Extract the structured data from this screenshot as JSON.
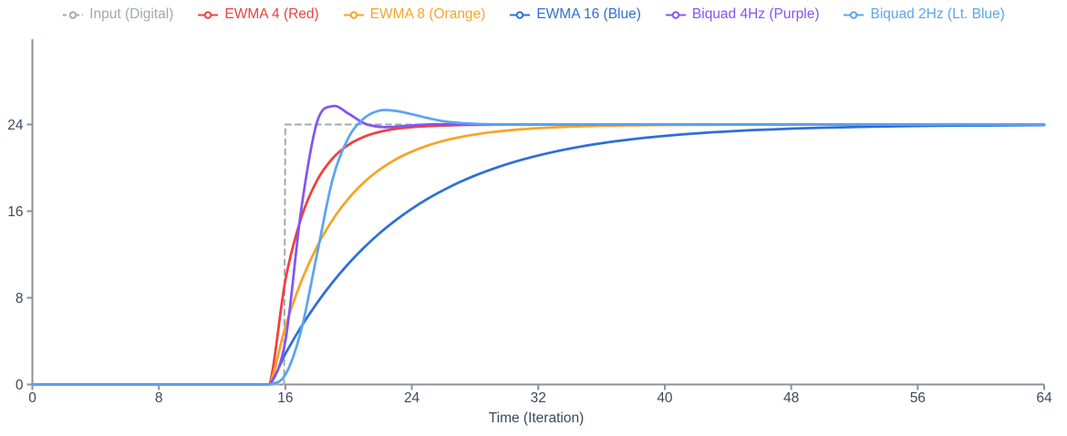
{
  "chart_data": {
    "type": "line",
    "title": "",
    "xlabel": "Time (Iteration)",
    "ylabel": "",
    "xlim": [
      0,
      64
    ],
    "ylim": [
      0,
      31.8
    ],
    "x_ticks": [
      0,
      8,
      16,
      24,
      32,
      40,
      48,
      56,
      64
    ],
    "y_ticks": [
      0,
      8,
      16,
      24
    ],
    "grid": false,
    "legend_position": "top-center",
    "axis_color": "#8b919c",
    "tick_label_color": "#3b4a5e",
    "background_color": "#ffffff",
    "series": [
      {
        "label": "Input (Digital)",
        "color": "#a3a7b3",
        "dash": true,
        "smooth": false,
        "points": [
          [
            0,
            0
          ],
          [
            15.92,
            0
          ],
          [
            16,
            24
          ],
          [
            64,
            24
          ]
        ]
      },
      {
        "label": "EWMA 4 (Red)",
        "color": "#ee4140",
        "dash": false,
        "smooth": true,
        "points": [
          [
            0,
            0
          ],
          [
            8,
            0
          ],
          [
            14,
            0
          ],
          [
            15,
            0
          ],
          [
            16,
            9.6
          ],
          [
            17,
            15.36
          ],
          [
            18,
            18.82
          ],
          [
            19,
            20.89
          ],
          [
            20,
            22.13
          ],
          [
            21,
            22.88
          ],
          [
            22,
            23.33
          ],
          [
            23,
            23.6
          ],
          [
            24,
            23.76
          ],
          [
            25,
            23.85
          ],
          [
            26,
            23.91
          ],
          [
            27,
            23.95
          ],
          [
            28,
            23.97
          ],
          [
            30,
            23.99
          ],
          [
            33,
            24
          ],
          [
            48,
            24
          ],
          [
            64,
            24
          ]
        ]
      },
      {
        "label": "EWMA 8 (Orange)",
        "color": "#f7a428",
        "dash": false,
        "smooth": true,
        "points": [
          [
            0,
            0
          ],
          [
            8,
            0
          ],
          [
            14,
            0
          ],
          [
            15,
            0
          ],
          [
            16,
            5.33
          ],
          [
            17,
            9.48
          ],
          [
            18,
            12.71
          ],
          [
            19,
            15.22
          ],
          [
            20,
            17.17
          ],
          [
            21,
            18.69
          ],
          [
            22,
            19.87
          ],
          [
            23,
            20.79
          ],
          [
            24,
            21.5
          ],
          [
            25,
            22.06
          ],
          [
            26,
            22.49
          ],
          [
            27,
            22.82
          ],
          [
            28,
            23.08
          ],
          [
            29,
            23.29
          ],
          [
            30,
            23.44
          ],
          [
            31,
            23.57
          ],
          [
            32,
            23.66
          ],
          [
            33,
            23.74
          ],
          [
            34,
            23.8
          ],
          [
            35,
            23.84
          ],
          [
            36,
            23.88
          ],
          [
            38,
            23.93
          ],
          [
            40,
            23.96
          ],
          [
            44,
            23.98
          ],
          [
            48,
            24
          ],
          [
            56,
            24
          ],
          [
            64,
            24
          ]
        ]
      },
      {
        "label": "EWMA 16 (Blue)",
        "color": "#2e6fd8",
        "dash": false,
        "smooth": true,
        "points": [
          [
            0,
            0
          ],
          [
            8,
            0
          ],
          [
            14,
            0
          ],
          [
            15,
            0
          ],
          [
            16,
            2.82
          ],
          [
            17,
            5.32
          ],
          [
            18,
            7.51
          ],
          [
            19,
            9.45
          ],
          [
            20,
            11.16
          ],
          [
            21,
            12.67
          ],
          [
            22,
            14.01
          ],
          [
            23,
            15.18
          ],
          [
            24,
            16.22
          ],
          [
            25,
            17.14
          ],
          [
            26,
            17.94
          ],
          [
            27,
            18.66
          ],
          [
            28,
            19.29
          ],
          [
            29,
            19.84
          ],
          [
            30,
            20.33
          ],
          [
            31,
            20.76
          ],
          [
            32,
            21.14
          ],
          [
            33,
            21.48
          ],
          [
            34,
            21.78
          ],
          [
            35,
            22.04
          ],
          [
            36,
            22.27
          ],
          [
            37,
            22.47
          ],
          [
            38,
            22.65
          ],
          [
            39,
            22.81
          ],
          [
            40,
            22.95
          ],
          [
            41,
            23.07
          ],
          [
            42,
            23.18
          ],
          [
            43,
            23.28
          ],
          [
            44,
            23.36
          ],
          [
            45,
            23.44
          ],
          [
            46,
            23.51
          ],
          [
            47,
            23.56
          ],
          [
            48,
            23.62
          ],
          [
            50,
            23.7
          ],
          [
            52,
            23.77
          ],
          [
            54,
            23.82
          ],
          [
            56,
            23.86
          ],
          [
            58,
            23.89
          ],
          [
            60,
            23.91
          ],
          [
            62,
            23.93
          ],
          [
            64,
            23.95
          ]
        ]
      },
      {
        "label": "Biquad 4Hz (Purple)",
        "color": "#8355f2",
        "dash": false,
        "smooth": true,
        "points": [
          [
            0,
            0
          ],
          [
            8,
            0
          ],
          [
            14,
            0
          ],
          [
            15,
            0
          ],
          [
            16,
            4
          ],
          [
            17,
            16.1
          ],
          [
            18,
            24.2
          ],
          [
            19,
            25.7
          ],
          [
            20,
            25.0
          ],
          [
            21,
            24.1
          ],
          [
            22,
            23.78
          ],
          [
            23,
            23.8
          ],
          [
            24,
            23.92
          ],
          [
            25,
            24
          ],
          [
            26,
            24.02
          ],
          [
            28,
            24
          ],
          [
            40,
            24
          ],
          [
            56,
            24
          ],
          [
            64,
            24
          ]
        ]
      },
      {
        "label": "Biquad 2Hz (Lt. Blue)",
        "color": "#5ca4f0",
        "dash": false,
        "smooth": true,
        "points": [
          [
            0,
            0
          ],
          [
            8,
            0
          ],
          [
            14,
            0
          ],
          [
            15,
            0
          ],
          [
            16,
            0.9
          ],
          [
            17,
            5
          ],
          [
            18,
            12
          ],
          [
            19,
            19
          ],
          [
            20,
            22.8
          ],
          [
            21,
            24.6
          ],
          [
            22,
            25.3
          ],
          [
            23,
            25.25
          ],
          [
            24,
            24.95
          ],
          [
            25,
            24.6
          ],
          [
            26,
            24.3
          ],
          [
            27,
            24.15
          ],
          [
            28,
            24.06
          ],
          [
            29,
            24.02
          ],
          [
            30,
            24
          ],
          [
            40,
            24
          ],
          [
            56,
            24
          ],
          [
            64,
            24
          ]
        ]
      }
    ]
  }
}
